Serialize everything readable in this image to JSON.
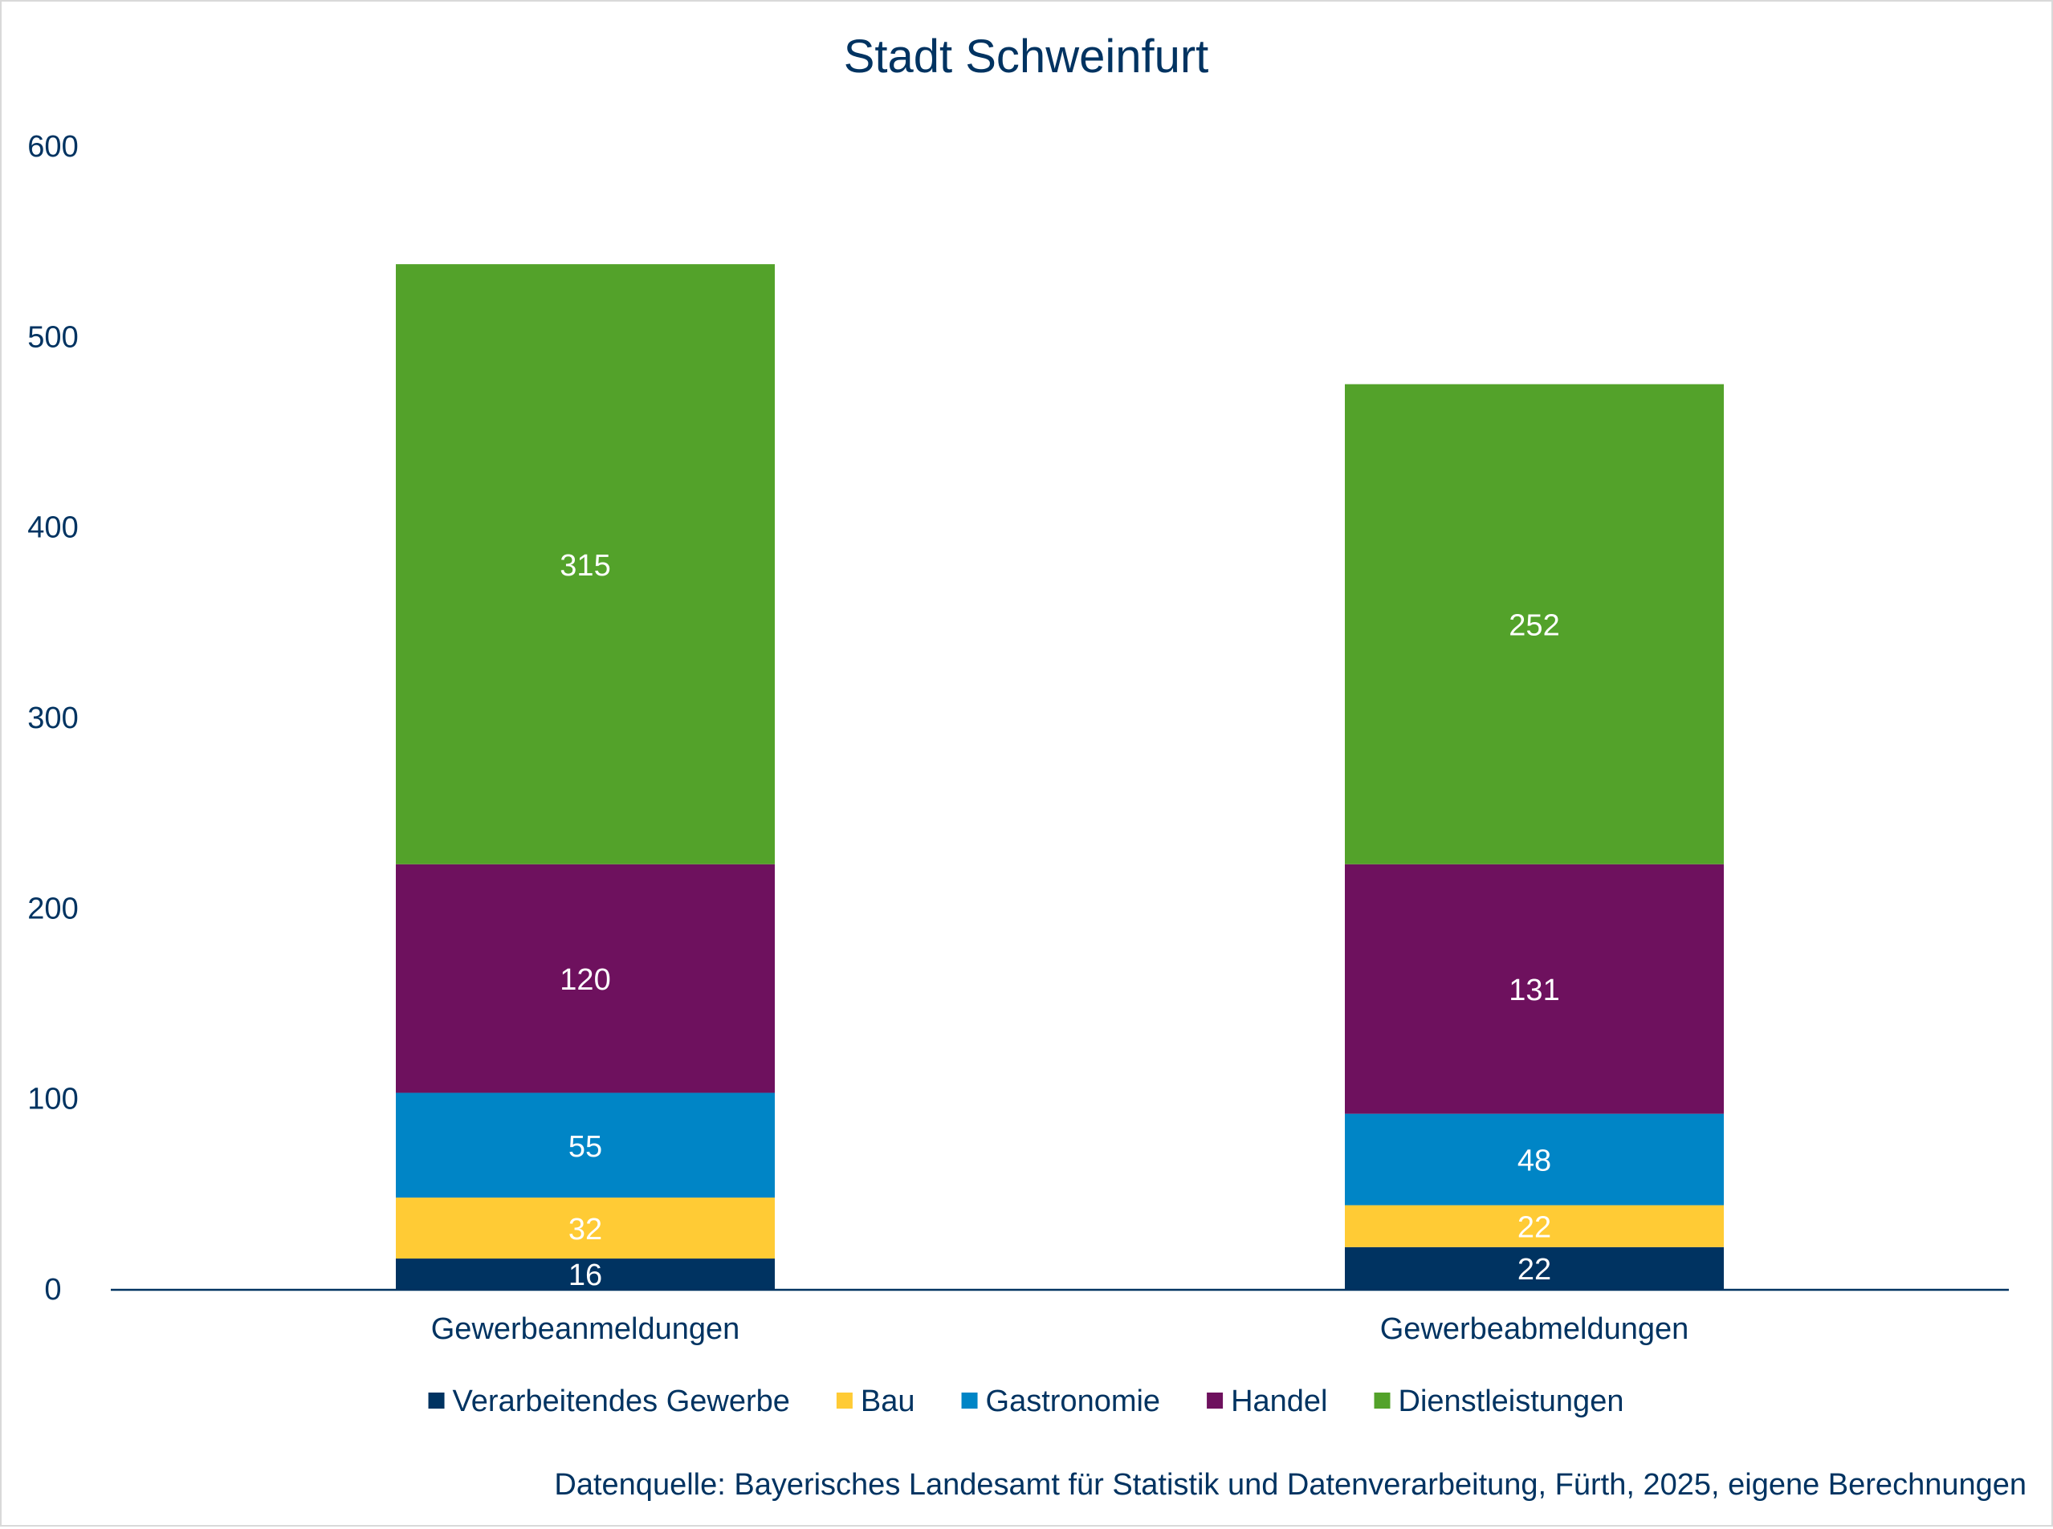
{
  "chart_data": {
    "type": "bar",
    "stacked": true,
    "title": "Stadt Schweinfurt",
    "xlabel": "",
    "ylabel": "",
    "ylim": [
      0,
      600
    ],
    "yticks": [
      "0",
      "100",
      "200",
      "300",
      "400",
      "500",
      "600"
    ],
    "grid": false,
    "legend_position": "bottom",
    "categories": [
      "Gewerbeanmeldungen",
      "Gewerbeabmeldungen"
    ],
    "series": [
      {
        "name": "Verarbeitendes Gewerbe",
        "values": [
          16,
          22
        ],
        "color": "#003361",
        "label_color": "#ffffff"
      },
      {
        "name": "Bau",
        "values": [
          32,
          22
        ],
        "color": "#ffcb35",
        "label_color": "#ffffff"
      },
      {
        "name": "Gastronomie",
        "values": [
          55,
          48
        ],
        "color": "#0085c6",
        "label_color": "#ffffff"
      },
      {
        "name": "Handel",
        "values": [
          120,
          131
        ],
        "color": "#6e115e",
        "label_color": "#ffffff"
      },
      {
        "name": "Dienstleistungen",
        "values": [
          315,
          252
        ],
        "color": "#53a22a",
        "label_color": "#ffffff"
      }
    ],
    "source_note": "Datenquelle: Bayerisches Landesamt für Statistik und Datenverarbeitung, Fürth, 2025, eigene Berechnungen",
    "text_color": "#003361"
  }
}
